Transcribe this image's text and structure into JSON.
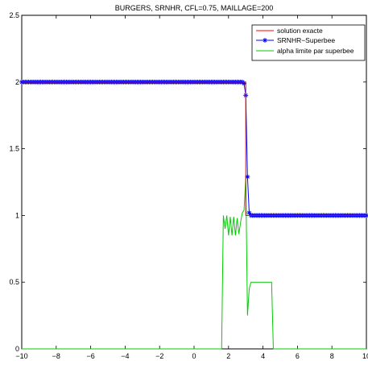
{
  "chart_data": {
    "type": "line",
    "title": "BURGERS, SRNHR, CFL=0.75, MAILLAGE=200",
    "xlabel": "",
    "ylabel": "",
    "xlim": [
      -10,
      10
    ],
    "ylim": [
      0,
      2.5
    ],
    "xticks": [
      "−10",
      "−8",
      "−6",
      "−4",
      "−2",
      "0",
      "2",
      "4",
      "6",
      "8",
      "10"
    ],
    "yticks": [
      "0",
      "0.5",
      "1",
      "1.5",
      "2",
      "2.5"
    ],
    "legend_position": "top-right",
    "grid": false,
    "series": [
      {
        "name": "solution exacte",
        "color": "#ff0000",
        "marker": "none",
        "points": [
          [
            -10,
            2
          ],
          [
            3.0,
            2
          ],
          [
            3.0,
            1
          ],
          [
            10,
            1
          ]
        ]
      },
      {
        "name": "SRNHR−Superbee",
        "color": "#0000ff",
        "marker": "star",
        "points": [
          [
            -10,
            2
          ],
          [
            2.8,
            2
          ],
          [
            2.9,
            1.99
          ],
          [
            3.0,
            1.9
          ],
          [
            3.1,
            1.29
          ],
          [
            3.2,
            1.02
          ],
          [
            3.3,
            1.0
          ],
          [
            10,
            1
          ]
        ]
      },
      {
        "name": "alpha limite par superbee",
        "color": "#00cc00",
        "marker": "none",
        "points": [
          [
            -10,
            0
          ],
          [
            1.6,
            0
          ],
          [
            1.7,
            1.0
          ],
          [
            1.8,
            0.9
          ],
          [
            1.9,
            1.0
          ],
          [
            2.0,
            0.85
          ],
          [
            2.1,
            0.99
          ],
          [
            2.2,
            0.85
          ],
          [
            2.3,
            0.99
          ],
          [
            2.4,
            0.85
          ],
          [
            2.5,
            0.98
          ],
          [
            2.6,
            0.86
          ],
          [
            2.7,
            0.95
          ],
          [
            2.8,
            1.02
          ],
          [
            2.9,
            1.04
          ],
          [
            3.0,
            1.28
          ],
          [
            3.1,
            0.25
          ],
          [
            3.2,
            0.45
          ],
          [
            3.3,
            0.5
          ],
          [
            4.5,
            0.5
          ],
          [
            4.6,
            0
          ],
          [
            10,
            0
          ]
        ]
      }
    ]
  }
}
